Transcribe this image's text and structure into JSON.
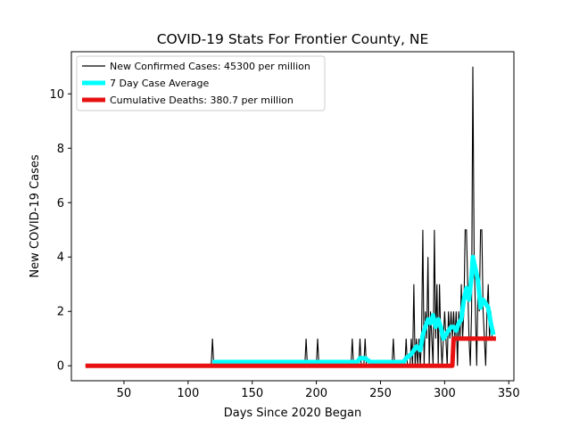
{
  "chart_data": {
    "type": "line",
    "title": "COVID-19 Stats For Frontier County, NE",
    "xlabel": "Days Since 2020 Began",
    "ylabel": "New COVID-19 Cases",
    "xlim": [
      9,
      354
    ],
    "ylim": [
      -0.55,
      11.55
    ],
    "x_ticks": [
      50,
      100,
      150,
      200,
      250,
      300,
      350
    ],
    "y_ticks": [
      0,
      2,
      4,
      6,
      8,
      10
    ],
    "grid": false,
    "legend_position": "upper-left",
    "series": [
      {
        "name": "New Confirmed Cases: 45300 per million",
        "color": "#000000",
        "points": [
          [
            20,
            0
          ],
          [
            118,
            0
          ],
          [
            119,
            1
          ],
          [
            120,
            0
          ],
          [
            191,
            0
          ],
          [
            192,
            1
          ],
          [
            193,
            0
          ],
          [
            200,
            0
          ],
          [
            201,
            1
          ],
          [
            202,
            0
          ],
          [
            227,
            0
          ],
          [
            228,
            1
          ],
          [
            229,
            0
          ],
          [
            233,
            0
          ],
          [
            234,
            1
          ],
          [
            235,
            0
          ],
          [
            237,
            0
          ],
          [
            238,
            1
          ],
          [
            239,
            0
          ],
          [
            259,
            0
          ],
          [
            260,
            1
          ],
          [
            261,
            0
          ],
          [
            269,
            0
          ],
          [
            270,
            1
          ],
          [
            271,
            0
          ],
          [
            273,
            0
          ],
          [
            274,
            1
          ],
          [
            275,
            0
          ],
          [
            276,
            3
          ],
          [
            277,
            0
          ],
          [
            278,
            1
          ],
          [
            279,
            0
          ],
          [
            280,
            1
          ],
          [
            281,
            0
          ],
          [
            282,
            1
          ],
          [
            283,
            5
          ],
          [
            284,
            0
          ],
          [
            285,
            2
          ],
          [
            286,
            1
          ],
          [
            287,
            4
          ],
          [
            288,
            0
          ],
          [
            289,
            2
          ],
          [
            290,
            1
          ],
          [
            291,
            0
          ],
          [
            292,
            5
          ],
          [
            293,
            1
          ],
          [
            294,
            3
          ],
          [
            295,
            0
          ],
          [
            296,
            3
          ],
          [
            297,
            1
          ],
          [
            298,
            0
          ],
          [
            299,
            1
          ],
          [
            300,
            2
          ],
          [
            301,
            1
          ],
          [
            302,
            0
          ],
          [
            303,
            2
          ],
          [
            304,
            1
          ],
          [
            305,
            2
          ],
          [
            306,
            1
          ],
          [
            307,
            2
          ],
          [
            308,
            1
          ],
          [
            309,
            2
          ],
          [
            310,
            0
          ],
          [
            311,
            2
          ],
          [
            312,
            1
          ],
          [
            313,
            3
          ],
          [
            314,
            1
          ],
          [
            315,
            2
          ],
          [
            316,
            5
          ],
          [
            317,
            5
          ],
          [
            318,
            3
          ],
          [
            319,
            1
          ],
          [
            320,
            0
          ],
          [
            321,
            2
          ],
          [
            322,
            11
          ],
          [
            323,
            4
          ],
          [
            324,
            2
          ],
          [
            325,
            0
          ],
          [
            326,
            3
          ],
          [
            327,
            2
          ],
          [
            328,
            5
          ],
          [
            329,
            5
          ],
          [
            330,
            2
          ],
          [
            331,
            1
          ],
          [
            332,
            0
          ],
          [
            333,
            2
          ],
          [
            334,
            3
          ],
          [
            335,
            1
          ],
          [
            336,
            2
          ],
          [
            337,
            1
          ],
          [
            338,
            1
          ]
        ]
      },
      {
        "name": "7 Day Case Average",
        "color": "#00ffff",
        "points": [
          [
            119,
            0.14
          ],
          [
            125,
            0.14
          ],
          [
            192,
            0.14
          ],
          [
            199,
            0.14
          ],
          [
            201,
            0.14
          ],
          [
            207,
            0.14
          ],
          [
            228,
            0.14
          ],
          [
            232,
            0.14
          ],
          [
            234,
            0.28
          ],
          [
            238,
            0.28
          ],
          [
            242,
            0.14
          ],
          [
            260,
            0.14
          ],
          [
            268,
            0.14
          ],
          [
            270,
            0.28
          ],
          [
            274,
            0.43
          ],
          [
            278,
            0.71
          ],
          [
            281,
            0.57
          ],
          [
            283,
            1.14
          ],
          [
            285,
            1.43
          ],
          [
            287,
            1.71
          ],
          [
            289,
            1.57
          ],
          [
            291,
            1.86
          ],
          [
            293,
            1.43
          ],
          [
            295,
            1.71
          ],
          [
            297,
            1.43
          ],
          [
            299,
            1.0
          ],
          [
            301,
            1.14
          ],
          [
            303,
            1.29
          ],
          [
            305,
            1.43
          ],
          [
            307,
            1.43
          ],
          [
            309,
            1.29
          ],
          [
            311,
            1.57
          ],
          [
            313,
            1.71
          ],
          [
            315,
            2.43
          ],
          [
            317,
            2.86
          ],
          [
            319,
            2.43
          ],
          [
            321,
            3.29
          ],
          [
            322,
            4.0
          ],
          [
            324,
            3.57
          ],
          [
            326,
            3.14
          ],
          [
            328,
            2.14
          ],
          [
            330,
            2.43
          ],
          [
            332,
            2.29
          ],
          [
            334,
            2.14
          ],
          [
            336,
            1.57
          ],
          [
            338,
            1.14
          ]
        ]
      },
      {
        "name": "Cumulative Deaths: 380.7 per million",
        "color": "#e81010",
        "points": [
          [
            20,
            0
          ],
          [
            306,
            0
          ],
          [
            307,
            1
          ],
          [
            340,
            1
          ]
        ]
      }
    ]
  }
}
